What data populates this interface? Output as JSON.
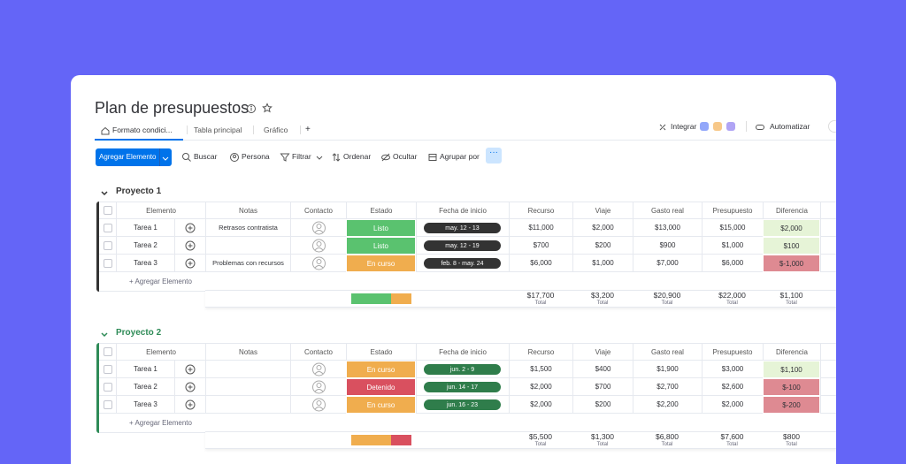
{
  "header": {
    "title": "Plan de presupuestos",
    "tabs": [
      "Formato condici...",
      "Tabla principal",
      "Gráfico"
    ],
    "add_tab": "+",
    "integrate": "Integrar",
    "automate": "Automatizar"
  },
  "toolbar": {
    "add_button": "Agregar Elemento",
    "actions": [
      "Buscar",
      "Persona",
      "Filtrar",
      "Ordenar",
      "Ocultar",
      "Agrupar por"
    ]
  },
  "groups": [
    {
      "name": "Proyecto 1",
      "color": "#333333",
      "date_color": "#333333",
      "columns": [
        "Elemento",
        "Notas",
        "Contacto",
        "Estado",
        "Fecha de inicio",
        "Recurso",
        "Viaje",
        "Gasto real",
        "Presupuesto",
        "Diferencia"
      ],
      "rows": [
        {
          "item": "Tarea 1",
          "notes": "Retrasos contratista",
          "status": "Listo",
          "status_color": "#5ac26f",
          "date": "may. 12 - 13",
          "cells": [
            "$11,000",
            "$2,000",
            "$13,000",
            "$15,000",
            "$2,000"
          ],
          "difference_color": "#e6f4d7"
        },
        {
          "item": "Tarea 2",
          "notes": "",
          "status": "Listo",
          "status_color": "#5ac26f",
          "date": "may. 12 - 19",
          "cells": [
            "$700",
            "$200",
            "$900",
            "$1,000",
            "$100"
          ],
          "difference_color": "#e6f4d7"
        },
        {
          "item": "Tarea 3",
          "notes": "Problemas con recursos",
          "status": "En curso",
          "status_color": "#f0ad4e",
          "date": "feb. 8 - may. 24",
          "cells": [
            "$6,000",
            "$1,000",
            "$7,000",
            "$6,000",
            "$-1,000"
          ],
          "difference_color": "#de8a92"
        }
      ],
      "add_row": "+ Agregar Elemento",
      "totals": [
        {
          "amount": "$17,700",
          "label": "Total"
        },
        {
          "amount": "$3,200",
          "label": "Total"
        },
        {
          "amount": "$20,900",
          "label": "Total"
        },
        {
          "amount": "$22,000",
          "label": "Total"
        },
        {
          "amount": "$1,100",
          "label": "Total"
        }
      ]
    },
    {
      "name": "Proyecto 2",
      "color": "#2e8b57",
      "date_color": "#2f7d4b",
      "columns": [
        "Elemento",
        "Notas",
        "Contacto",
        "Estado",
        "Fecha de inicio",
        "Recurso",
        "Viaje",
        "Gasto real",
        "Presupuesto",
        "Diferencia"
      ],
      "rows": [
        {
          "item": "Tarea 1",
          "notes": "",
          "status": "En curso",
          "status_color": "#f0ad4e",
          "date": "jun. 2 - 9",
          "cells": [
            "$1,500",
            "$400",
            "$1,900",
            "$3,000",
            "$1,100"
          ],
          "difference_color": "#e6f4d7"
        },
        {
          "item": "Tarea 2",
          "notes": "",
          "status": "Detenido",
          "status_color": "#d9505f",
          "date": "jun. 14 - 17",
          "cells": [
            "$2,000",
            "$700",
            "$2,700",
            "$2,600",
            "$-100"
          ],
          "difference_color": "#de8a92"
        },
        {
          "item": "Tarea 3",
          "notes": "",
          "status": "En curso",
          "status_color": "#f0ad4e",
          "date": "jun. 16 - 23",
          "cells": [
            "$2,000",
            "$200",
            "$2,200",
            "$2,000",
            "$-200"
          ],
          "difference_color": "#de8a92"
        }
      ],
      "add_row": "+ Agregar Elemento",
      "totals": [
        {
          "amount": "$5,500",
          "label": "Total"
        },
        {
          "amount": "$1,300",
          "label": "Total"
        },
        {
          "amount": "$6,800",
          "label": "Total"
        },
        {
          "amount": "$7,600",
          "label": "Total"
        },
        {
          "amount": "$800",
          "label": "Total"
        }
      ]
    }
  ]
}
